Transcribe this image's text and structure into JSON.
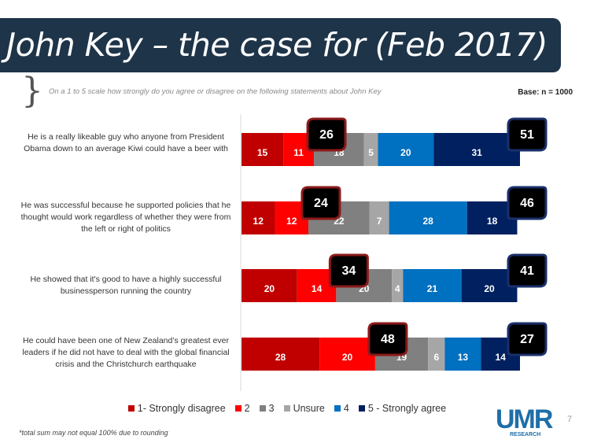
{
  "header": {
    "title": "John Key – the case for (Feb 2017)",
    "subtitle": "On a 1 to 5 scale how strongly do you agree or disagree on the following statements about John Key",
    "base": "Base: n = 1000",
    "brace_icon": "}"
  },
  "footer": {
    "footnote": "*total sum may not equal 100% due to rounding",
    "logo_text": "UMR",
    "logo_sub": "RESEARCH",
    "page_number": "7"
  },
  "chart_data": {
    "type": "bar",
    "orientation": "horizontal",
    "stacked": true,
    "title": "John Key – the case for (Feb 2017)",
    "xlabel": "",
    "ylabel": "",
    "xlim": [
      0,
      100
    ],
    "grid": false,
    "legend_position": "bottom",
    "categories": [
      "He is a really likeable guy who anyone from President Obama down to an average Kiwi could have a beer with",
      "He was successful because he supported policies that he thought would work regardless of whether they were from the left or right of politics",
      "He showed that it's good to have a highly successful businessperson running the country",
      "He could have been one of New Zealand’s greatest ever leaders if he did not have to deal with the global financial crisis and the Christchurch earthquake"
    ],
    "series": [
      {
        "name": "1- Strongly disagree",
        "color": "#c00000",
        "values": [
          15,
          12,
          20,
          28
        ]
      },
      {
        "name": "2",
        "color": "#ff0000",
        "values": [
          11,
          12,
          14,
          20
        ]
      },
      {
        "name": "3",
        "color": "#808080",
        "values": [
          18,
          22,
          20,
          19
        ]
      },
      {
        "name": "Unsure",
        "color": "#a6a6a6",
        "values": [
          5,
          7,
          4,
          6
        ]
      },
      {
        "name": "4",
        "color": "#0070c0",
        "values": [
          20,
          28,
          21,
          13
        ]
      },
      {
        "name": "5 - Strongly agree",
        "color": "#002060",
        "values": [
          31,
          18,
          20,
          14
        ]
      }
    ],
    "totals": {
      "disagree": {
        "values": [
          26,
          24,
          34,
          48
        ],
        "border_color": "#8b1a1a"
      },
      "agree": {
        "values": [
          51,
          46,
          41,
          27
        ],
        "border_color": "#1a2f6b"
      }
    }
  }
}
